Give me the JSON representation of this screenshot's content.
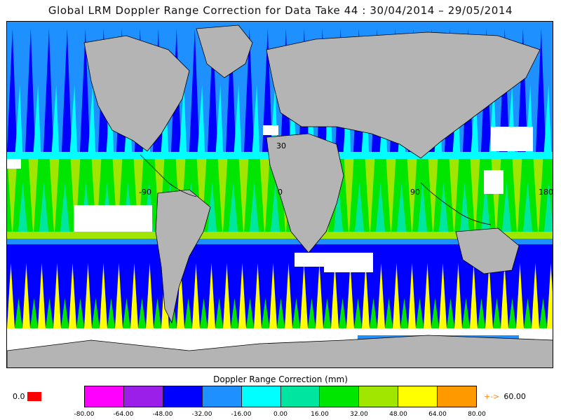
{
  "title": "Global LRM Doppler Range Correction for Data Take 44 : 30/04/2014 – 29/05/2014",
  "map": {
    "longitude_labels": [
      "-90",
      "0",
      "90",
      "180"
    ],
    "latitude_labels": [
      "30"
    ],
    "land_color": "#b4b4b4",
    "no_data_color": "#ffffff"
  },
  "colorbar": {
    "title": "Doppler Range Correction (mm)",
    "colors": [
      "#ff00ff",
      "#9b1fe8",
      "#0000ff",
      "#1e90ff",
      "#00ffff",
      "#00e6a0",
      "#00e600",
      "#a0e600",
      "#ffff00",
      "#ff9900"
    ],
    "tick_labels": [
      "-80.00",
      "-64.00",
      "-48.00",
      "-32.00",
      "-16.00",
      "0.00",
      "16.00",
      "32.00",
      "48.00",
      "64.00",
      "80.00"
    ]
  },
  "zero_legend": {
    "label": "0.0",
    "color": "#ff0000"
  },
  "overflow_legend": {
    "arrow": "+->",
    "value": "60.00"
  }
}
